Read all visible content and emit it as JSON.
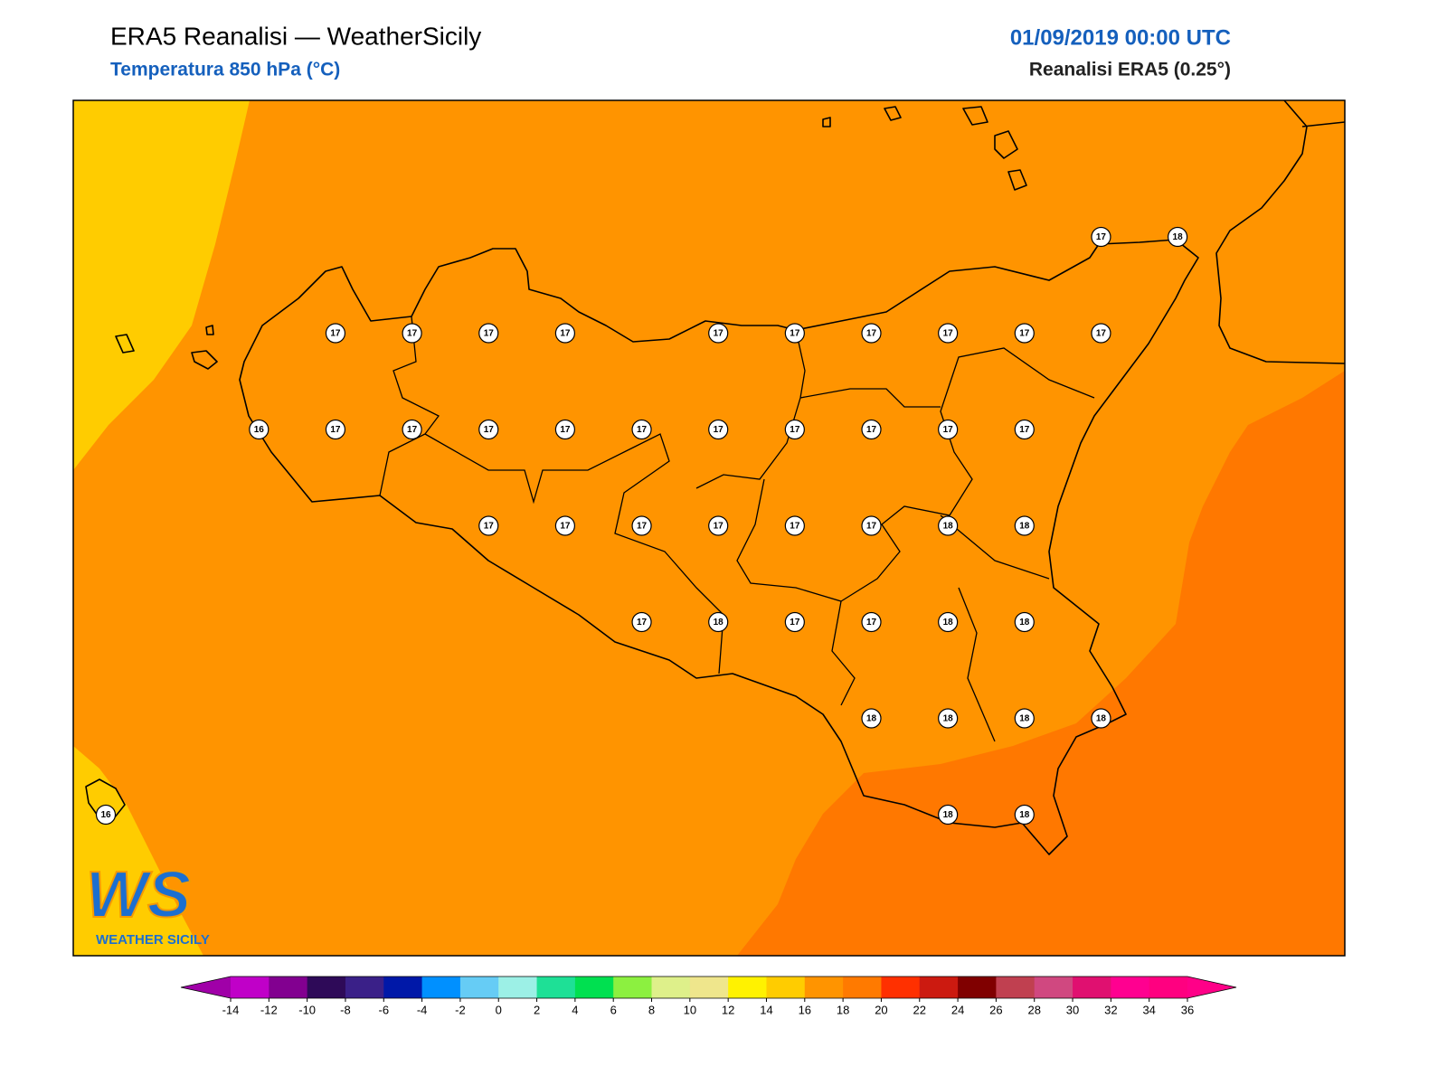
{
  "header": {
    "title": "ERA5 Reanalisi — WeatherSicily",
    "subtitle": "Temperatura 850 hPa (°C)",
    "date": "01/09/2019 00:00 UTC",
    "source": "Reanalisi ERA5 (0.25°)"
  },
  "map": {
    "stations": [
      [
        null,
        null,
        null,
        null,
        null,
        null,
        null,
        null,
        null,
        null,
        null,
        null,
        null,
        17,
        18
      ],
      [
        null,
        null,
        null,
        17,
        17,
        17,
        17,
        null,
        17,
        17,
        17,
        17,
        17,
        17,
        null
      ],
      [
        null,
        null,
        16,
        17,
        17,
        17,
        17,
        17,
        17,
        17,
        17,
        17,
        17,
        null,
        null
      ],
      [
        null,
        null,
        null,
        null,
        null,
        17,
        17,
        17,
        17,
        17,
        17,
        18,
        18,
        null,
        null
      ],
      [
        null,
        null,
        null,
        null,
        null,
        null,
        null,
        17,
        18,
        17,
        17,
        18,
        18,
        null,
        null
      ],
      [
        null,
        null,
        null,
        null,
        null,
        null,
        null,
        null,
        null,
        null,
        18,
        18,
        18,
        18,
        null
      ],
      [
        16,
        null,
        null,
        null,
        null,
        null,
        null,
        null,
        null,
        null,
        null,
        18,
        18,
        null,
        null
      ]
    ]
  },
  "logo": {
    "mark": "WS",
    "text": "WEATHER SICILY"
  },
  "colorbar": {
    "ticks": [
      -14,
      -12,
      -10,
      -8,
      -6,
      -4,
      -2,
      0,
      2,
      4,
      6,
      8,
      10,
      12,
      14,
      16,
      18,
      20,
      22,
      24,
      26,
      28,
      30,
      32,
      34,
      36
    ],
    "colors": [
      "#c000c8",
      "#820090",
      "#2e0a58",
      "#3a2088",
      "#0018a8",
      "#0090ff",
      "#66ccf5",
      "#9cf0e6",
      "#1ee096",
      "#00e050",
      "#8cf040",
      "#def08a",
      "#efe68c",
      "#fff200",
      "#ffcc00",
      "#ff9400",
      "#ff7a00",
      "#ff3000",
      "#cc1a10",
      "#800000",
      "#c04050",
      "#d04880",
      "#e01070",
      "#ff0090",
      "#ff0080"
    ],
    "extend_colors": [
      "#a000a8",
      "#ff0088"
    ]
  }
}
